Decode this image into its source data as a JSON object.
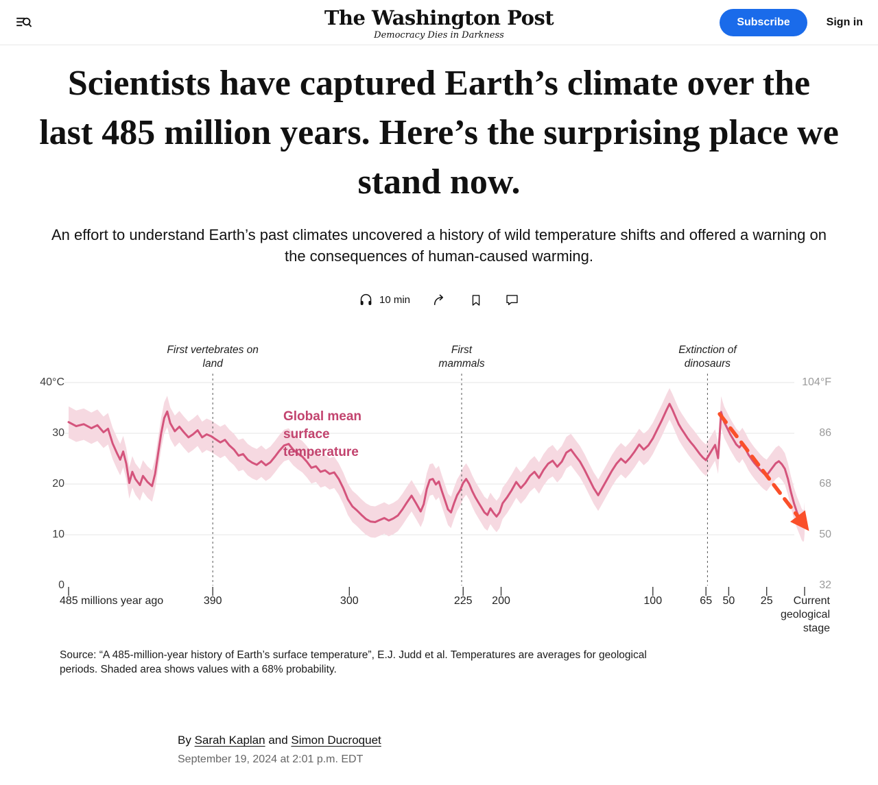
{
  "header": {
    "logo": "The Washington Post",
    "tagline": "Democracy Dies in Darkness",
    "subscribe_label": "Subscribe",
    "signin_label": "Sign in",
    "accent_color": "#1a6bea"
  },
  "icons": {
    "header_left": "menu-search-icon",
    "actions": [
      "headphones-icon",
      "share-icon",
      "bookmark-icon",
      "comment-icon"
    ]
  },
  "article": {
    "headline": "Scientists have captured Earth’s climate over the last 485 million years. Here’s the surprising place we stand now.",
    "subhead": "An effort to understand Earth’s past climates uncovered a history of wild temperature shifts and offered a warning on the consequences of human-caused warming.",
    "read_time": "10 min",
    "source_note": "Source: “A 485-million-year history of Earth’s surface temperature”, E.J. Judd et al. Temperatures are averages for geological periods. Shaded area shows values with a 68% probability.",
    "byline_prefix": "By ",
    "byline_and": " and ",
    "authors": [
      "Sarah Kaplan",
      "Simon Ducroquet"
    ],
    "date": "September 19, 2024 at 2:01 p.m. EDT"
  },
  "chart_data": {
    "type": "line",
    "title": "Global mean surface temperature",
    "x_unit": "millions of years ago",
    "x_range": [
      485,
      0
    ],
    "ylim": [
      0,
      40
    ],
    "grid": true,
    "band_note": "Shaded area shows values with a 68% probability",
    "band_halfwidth_c": 3.1,
    "y_ticks_left": [
      {
        "value": 40,
        "label": "40°C"
      },
      {
        "value": 30,
        "label": "30"
      },
      {
        "value": 20,
        "label": "20"
      },
      {
        "value": 10,
        "label": "10"
      },
      {
        "value": 0,
        "label": "0"
      }
    ],
    "y_ticks_right": [
      {
        "value": 40,
        "label": "104°F"
      },
      {
        "value": 30,
        "label": "86"
      },
      {
        "value": 20,
        "label": "68"
      },
      {
        "value": 10,
        "label": "50"
      },
      {
        "value": 0,
        "label": "32"
      }
    ],
    "x_ticks": [
      {
        "ma": 485,
        "label": "485 millions year ago",
        "align": "left"
      },
      {
        "ma": 390,
        "label": "390",
        "align": "center"
      },
      {
        "ma": 300,
        "label": "300",
        "align": "center"
      },
      {
        "ma": 225,
        "label": "225",
        "align": "center"
      },
      {
        "ma": 200,
        "label": "200",
        "align": "center"
      },
      {
        "ma": 100,
        "label": "100",
        "align": "center"
      },
      {
        "ma": 65,
        "label": "65",
        "align": "center"
      },
      {
        "ma": 50,
        "label": "50",
        "align": "center"
      },
      {
        "ma": 25,
        "label": "25",
        "align": "center"
      },
      {
        "ma": 0,
        "label": "Current geological stage",
        "align": "right"
      }
    ],
    "events": [
      {
        "ma": 390,
        "label": "First vertebrates on land",
        "width": 152
      },
      {
        "ma": 226,
        "label": "First mammals",
        "width": 84
      },
      {
        "ma": 64,
        "label": "Extinction of dinosaurs",
        "width": 122
      }
    ],
    "trend_arrow": {
      "from_ma": 56,
      "from_c": 33.8,
      "to_ma": 1.3,
      "to_c": 12.4
    },
    "colors": {
      "line": "#d4547c",
      "band": "#f6d9e1",
      "label": "#c2436e",
      "arrow": "#fa4f2a",
      "grid": "#e4e4e4",
      "dashed": "#555555",
      "axis_left": "#3c3c3c",
      "axis_right": "#9a9a9a",
      "tick": "#3c3c3c"
    },
    "series": [
      {
        "name": "Global mean surface temperature (°C)",
        "points": [
          [
            485,
            32.2
          ],
          [
            480,
            31.4
          ],
          [
            475,
            31.8
          ],
          [
            470,
            31.0
          ],
          [
            466,
            31.6
          ],
          [
            462,
            30.2
          ],
          [
            459,
            30.9
          ],
          [
            456,
            28.0
          ],
          [
            453,
            26.0
          ],
          [
            451,
            24.8
          ],
          [
            449,
            26.4
          ],
          [
            447,
            24.0
          ],
          [
            445,
            20.2
          ],
          [
            443,
            22.4
          ],
          [
            441,
            21.0
          ],
          [
            438,
            19.8
          ],
          [
            436,
            21.6
          ],
          [
            433,
            20.4
          ],
          [
            430,
            19.6
          ],
          [
            428,
            22.0
          ],
          [
            426,
            26.0
          ],
          [
            424,
            30.0
          ],
          [
            422,
            33.0
          ],
          [
            420,
            34.3
          ],
          [
            418,
            32.0
          ],
          [
            415,
            30.4
          ],
          [
            412,
            31.3
          ],
          [
            409,
            30.2
          ],
          [
            406,
            29.2
          ],
          [
            403,
            29.8
          ],
          [
            400,
            30.6
          ],
          [
            397,
            29.2
          ],
          [
            394,
            29.8
          ],
          [
            391,
            29.4
          ],
          [
            388,
            28.8
          ],
          [
            385,
            28.2
          ],
          [
            382,
            28.7
          ],
          [
            379,
            27.6
          ],
          [
            376,
            26.8
          ],
          [
            373,
            25.6
          ],
          [
            370,
            25.9
          ],
          [
            367,
            24.8
          ],
          [
            364,
            24.2
          ],
          [
            361,
            23.8
          ],
          [
            358,
            24.5
          ],
          [
            355,
            23.7
          ],
          [
            352,
            24.3
          ],
          [
            349,
            25.4
          ],
          [
            346,
            26.6
          ],
          [
            343,
            27.6
          ],
          [
            340,
            27.9
          ],
          [
            337,
            26.8
          ],
          [
            334,
            26.0
          ],
          [
            331,
            25.4
          ],
          [
            328,
            24.4
          ],
          [
            325,
            23.2
          ],
          [
            322,
            23.5
          ],
          [
            319,
            22.4
          ],
          [
            316,
            22.7
          ],
          [
            313,
            22.0
          ],
          [
            310,
            22.3
          ],
          [
            307,
            21.0
          ],
          [
            304,
            19.2
          ],
          [
            301,
            17.0
          ],
          [
            298,
            15.6
          ],
          [
            295,
            14.8
          ],
          [
            292,
            13.9
          ],
          [
            289,
            13.1
          ],
          [
            286,
            12.6
          ],
          [
            283,
            12.5
          ],
          [
            280,
            12.9
          ],
          [
            277,
            13.3
          ],
          [
            274,
            12.8
          ],
          [
            271,
            13.2
          ],
          [
            268,
            13.8
          ],
          [
            265,
            15.0
          ],
          [
            262,
            16.4
          ],
          [
            259,
            17.7
          ],
          [
            256,
            16.2
          ],
          [
            253,
            14.6
          ],
          [
            251,
            16.0
          ],
          [
            249,
            19.0
          ],
          [
            247,
            20.8
          ],
          [
            245,
            21.0
          ],
          [
            243,
            19.9
          ],
          [
            241,
            20.5
          ],
          [
            239,
            18.6
          ],
          [
            237,
            16.8
          ],
          [
            235,
            15.0
          ],
          [
            233,
            14.4
          ],
          [
            231,
            16.2
          ],
          [
            229,
            17.8
          ],
          [
            227,
            18.8
          ],
          [
            225,
            20.2
          ],
          [
            223,
            21.0
          ],
          [
            221,
            20.0
          ],
          [
            219,
            18.6
          ],
          [
            217,
            17.4
          ],
          [
            215,
            16.4
          ],
          [
            213,
            15.4
          ],
          [
            211,
            14.4
          ],
          [
            209,
            13.9
          ],
          [
            207,
            15.2
          ],
          [
            205,
            14.3
          ],
          [
            203,
            13.6
          ],
          [
            201,
            14.4
          ],
          [
            199,
            16.2
          ],
          [
            196,
            17.4
          ],
          [
            193,
            18.8
          ],
          [
            190,
            20.4
          ],
          [
            187,
            19.2
          ],
          [
            184,
            20.2
          ],
          [
            181,
            21.6
          ],
          [
            178,
            22.4
          ],
          [
            175,
            21.2
          ],
          [
            172,
            22.8
          ],
          [
            169,
            24.0
          ],
          [
            166,
            24.6
          ],
          [
            163,
            23.4
          ],
          [
            160,
            24.4
          ],
          [
            157,
            26.2
          ],
          [
            154,
            26.8
          ],
          [
            151,
            25.6
          ],
          [
            148,
            24.4
          ],
          [
            145,
            22.8
          ],
          [
            142,
            21.0
          ],
          [
            139,
            19.2
          ],
          [
            136,
            17.8
          ],
          [
            133,
            19.4
          ],
          [
            130,
            21.0
          ],
          [
            127,
            22.6
          ],
          [
            124,
            24.0
          ],
          [
            121,
            25.0
          ],
          [
            118,
            24.2
          ],
          [
            115,
            25.2
          ],
          [
            112,
            26.4
          ],
          [
            109,
            27.8
          ],
          [
            106,
            26.8
          ],
          [
            103,
            27.6
          ],
          [
            100,
            29.0
          ],
          [
            97,
            30.8
          ],
          [
            94,
            32.6
          ],
          [
            91,
            34.6
          ],
          [
            89,
            35.8
          ],
          [
            87,
            34.6
          ],
          [
            85,
            33.2
          ],
          [
            83,
            31.8
          ],
          [
            81,
            30.8
          ],
          [
            79,
            29.9
          ],
          [
            77,
            29.0
          ],
          [
            75,
            28.2
          ],
          [
            73,
            27.5
          ],
          [
            71,
            26.7
          ],
          [
            69,
            25.9
          ],
          [
            67,
            25.2
          ],
          [
            65,
            24.7
          ],
          [
            63,
            25.7
          ],
          [
            61,
            26.7
          ],
          [
            59,
            27.7
          ],
          [
            58,
            26.4
          ],
          [
            57,
            25.1
          ],
          [
            56,
            29.5
          ],
          [
            55,
            34.2
          ],
          [
            54,
            33.2
          ],
          [
            53,
            32.2
          ],
          [
            51,
            31.0
          ],
          [
            49,
            29.8
          ],
          [
            47,
            28.8
          ],
          [
            45,
            27.8
          ],
          [
            43,
            27.2
          ],
          [
            41,
            28.0
          ],
          [
            39,
            27.0
          ],
          [
            37,
            25.8
          ],
          [
            35,
            24.9
          ],
          [
            33,
            24.1
          ],
          [
            31,
            23.4
          ],
          [
            29,
            22.7
          ],
          [
            27,
            22.1
          ],
          [
            25,
            21.7
          ],
          [
            23,
            22.5
          ],
          [
            21,
            23.3
          ],
          [
            19,
            24.1
          ],
          [
            17,
            24.5
          ],
          [
            15,
            23.9
          ],
          [
            13,
            23.0
          ],
          [
            11,
            21.0
          ],
          [
            9,
            18.4
          ],
          [
            7,
            16.2
          ],
          [
            5,
            14.4
          ],
          [
            3,
            12.9
          ],
          [
            2,
            12.1
          ],
          [
            1,
            11.7
          ],
          [
            0.4,
            11.9
          ],
          [
            0,
            13.3
          ]
        ]
      }
    ]
  }
}
